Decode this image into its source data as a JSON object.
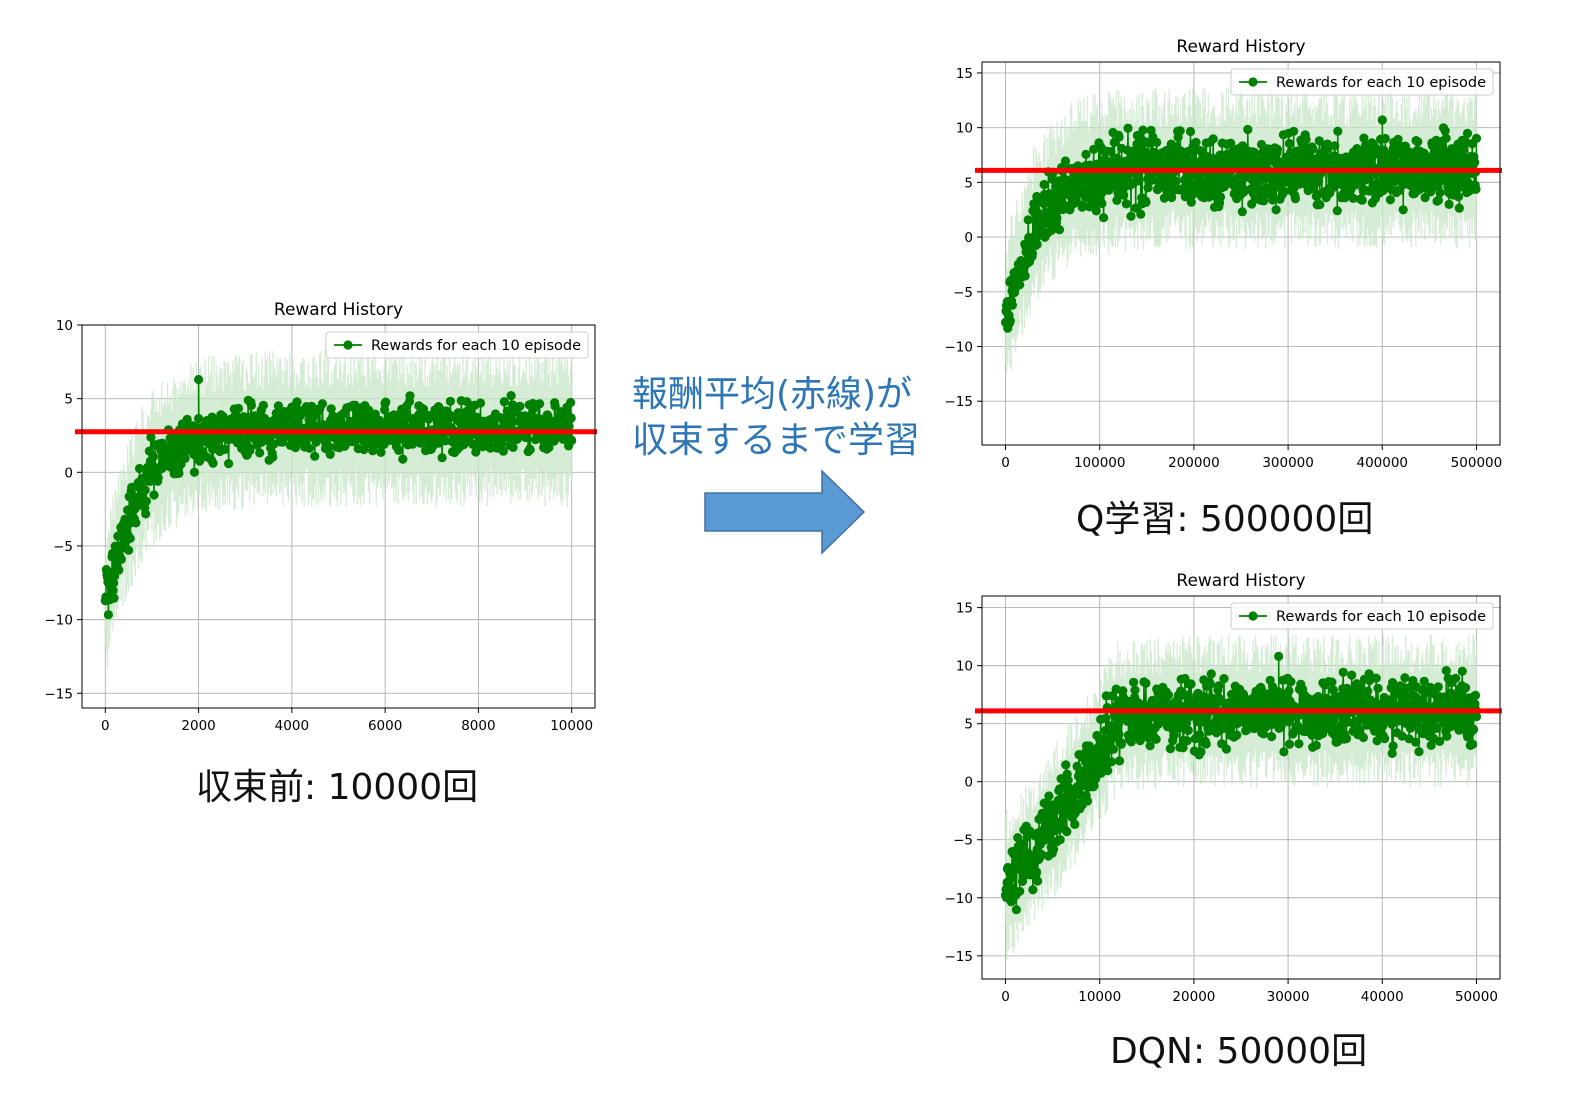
{
  "colors": {
    "series": "#008000",
    "band": "#c8e6c8",
    "average_line": "#ff0000",
    "arrow_fill": "#5b9bd5",
    "arrow_stroke": "#41719c",
    "note_text": "#2e75b6"
  },
  "note": {
    "line1": "報酬平均(赤線)が",
    "line2": "収束するまで学習"
  },
  "captions": {
    "before": "収束前: 10000回",
    "q_learning": "Q学習: 500000回",
    "dqn": "DQN: 50000回"
  },
  "chart_data": [
    {
      "id": "before",
      "type": "line",
      "title": "Reward History",
      "legend": "Rewards for each 10 episode",
      "legend_position": "upper-right",
      "grid": true,
      "xlim": [
        -500,
        10500
      ],
      "ylim": [
        -16,
        10
      ],
      "xticks": [
        0,
        2000,
        4000,
        6000,
        8000,
        10000
      ],
      "yticks": [
        -15,
        -10,
        -5,
        0,
        5,
        10
      ],
      "x_end": 10000,
      "average_line": 2.75,
      "trend": {
        "start": -9,
        "plateau": 3,
        "tau": 700,
        "spread": 1.2,
        "spread_start": 1.6
      },
      "band": {
        "low": -4.5,
        "high": 4.5
      },
      "annotations": {
        "max": {
          "x": 2000,
          "y": 6.3
        }
      }
    },
    {
      "id": "q_learning",
      "type": "line",
      "title": "Reward History",
      "legend": "Rewards for each 10 episode",
      "legend_position": "upper-right",
      "grid": true,
      "xlim": [
        -25000,
        525000
      ],
      "ylim": [
        -19,
        16
      ],
      "xticks": [
        0,
        100000,
        200000,
        300000,
        400000,
        500000
      ],
      "yticks": [
        -15,
        -10,
        -5,
        0,
        5,
        10,
        15
      ],
      "x_end": 500000,
      "average_line": 6.1,
      "trend": {
        "start": -8,
        "plateau": 6.1,
        "tau": 32000,
        "spread": 2.2,
        "spread_start": 1.8
      },
      "band": {
        "low": -6,
        "high": 6.5
      },
      "annotations": {
        "max": {
          "x": 400000,
          "y": 10.7
        }
      }
    },
    {
      "id": "dqn",
      "type": "line",
      "title": "Reward History",
      "legend": "Rewards for each 10 episode",
      "legend_position": "upper-right",
      "grid": true,
      "xlim": [
        -2500,
        52500
      ],
      "ylim": [
        -17,
        16
      ],
      "xticks": [
        0,
        10000,
        20000,
        30000,
        40000,
        50000
      ],
      "yticks": [
        -15,
        -10,
        -5,
        0,
        5,
        10,
        15
      ],
      "x_end": 50000,
      "average_line": 6.1,
      "trend": {
        "start": -9,
        "plateau": 6.1,
        "tau": 5500,
        "spread": 2.0,
        "spread_start": 1.8,
        "linear_until": 12000
      },
      "band": {
        "low": -5.5,
        "high": 5.5
      },
      "annotations": {
        "max": {
          "x": 29000,
          "y": 10.8
        }
      }
    }
  ]
}
